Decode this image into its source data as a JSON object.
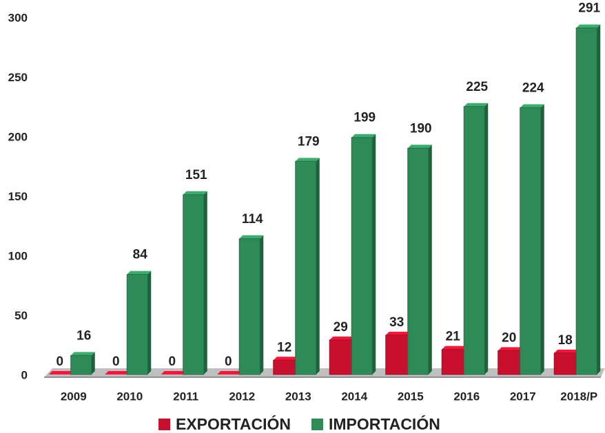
{
  "chart_data": {
    "type": "bar",
    "categories": [
      "2009",
      "2010",
      "2011",
      "2012",
      "2013",
      "2014",
      "2015",
      "2016",
      "2017",
      "2018/P"
    ],
    "series": [
      {
        "name": "EXPORTACIÓN",
        "color": "#c8102e",
        "values": [
          0,
          0,
          0,
          0,
          12,
          29,
          33,
          21,
          20,
          18
        ]
      },
      {
        "name": "IMPORTACIÓN",
        "color": "#2e8b57",
        "values": [
          16,
          84,
          151,
          114,
          179,
          199,
          190,
          225,
          224,
          291
        ]
      }
    ],
    "ylim": [
      0,
      300
    ],
    "yticks": [
      0,
      50,
      100,
      150,
      200,
      250,
      300
    ],
    "grid": false,
    "legend": "bottom"
  }
}
